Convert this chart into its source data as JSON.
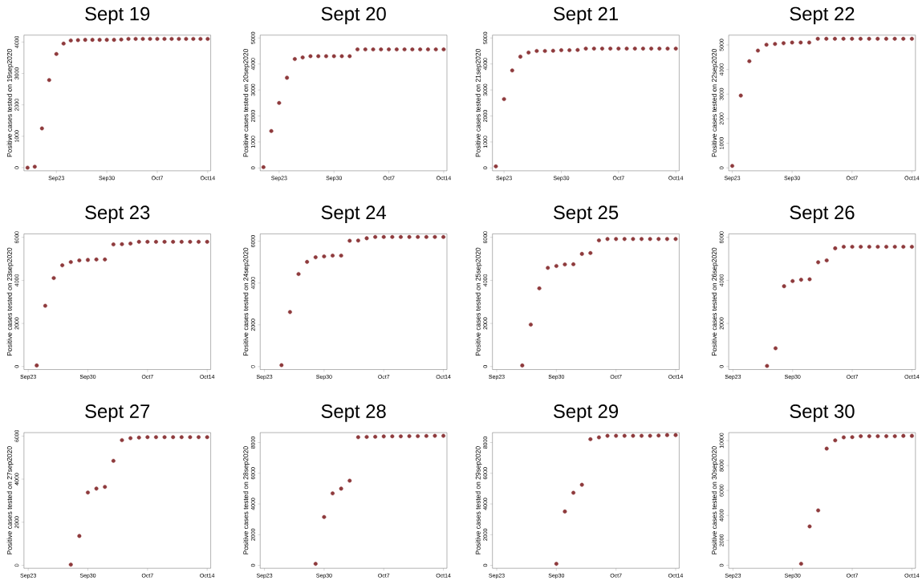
{
  "chart_data": [
    {
      "type": "scatter",
      "title": "Sept 19",
      "ylabel": "Positive cases tested on 19sep2020",
      "color": "#8e3a3c",
      "marker": "circle",
      "x": [
        "2020-09-19",
        "2020-09-20",
        "2020-09-21",
        "2020-09-22",
        "2020-09-23",
        "2020-09-24",
        "2020-09-25",
        "2020-09-26",
        "2020-09-27",
        "2020-09-28",
        "2020-09-29",
        "2020-09-30",
        "2020-10-01",
        "2020-10-02",
        "2020-10-03",
        "2020-10-04",
        "2020-10-05",
        "2020-10-06",
        "2020-10-07",
        "2020-10-08",
        "2020-10-09",
        "2020-10-10",
        "2020-10-11",
        "2020-10-12",
        "2020-10-13",
        "2020-10-14"
      ],
      "values": [
        0,
        30,
        1250,
        2790,
        3620,
        3950,
        4050,
        4060,
        4070,
        4070,
        4070,
        4070,
        4070,
        4080,
        4100,
        4100,
        4100,
        4100,
        4100,
        4100,
        4100,
        4100,
        4100,
        4100,
        4100,
        4100
      ],
      "xlim": [
        "2020-09-18T12:00",
        "2020-10-14T10:00"
      ],
      "ylim": [
        -100,
        4220
      ],
      "xticks": [
        {
          "value": "2020-09-23",
          "label": "Sep23"
        },
        {
          "value": "2020-09-30",
          "label": "Sep30"
        },
        {
          "value": "2020-10-07",
          "label": "Oct7"
        },
        {
          "value": "2020-10-14",
          "label": "Oct14"
        }
      ],
      "yticks": [
        0,
        1000,
        2000,
        3000,
        4000
      ]
    },
    {
      "type": "scatter",
      "title": "Sept 20",
      "ylabel": "Positive cases tested on 20sep2020",
      "color": "#8e3a3c",
      "marker": "circle",
      "x": [
        "2020-09-21",
        "2020-09-22",
        "2020-09-23",
        "2020-09-24",
        "2020-09-25",
        "2020-09-26",
        "2020-09-27",
        "2020-09-28",
        "2020-09-29",
        "2020-09-30",
        "2020-10-01",
        "2020-10-02",
        "2020-10-03",
        "2020-10-04",
        "2020-10-05",
        "2020-10-06",
        "2020-10-07",
        "2020-10-08",
        "2020-10-09",
        "2020-10-10",
        "2020-10-11",
        "2020-10-12",
        "2020-10-13",
        "2020-10-14"
      ],
      "values": [
        30,
        1420,
        2500,
        3470,
        4190,
        4250,
        4300,
        4300,
        4300,
        4300,
        4300,
        4300,
        4560,
        4560,
        4560,
        4560,
        4560,
        4560,
        4560,
        4560,
        4560,
        4560,
        4560,
        4560
      ],
      "xlim": [
        "2020-09-20T14:00",
        "2020-10-14T10:00"
      ],
      "ylim": [
        -110,
        5110
      ],
      "xticks": [
        {
          "value": "2020-09-23",
          "label": "Sep23"
        },
        {
          "value": "2020-09-30",
          "label": "Sep30"
        },
        {
          "value": "2020-10-07",
          "label": "Oct7"
        },
        {
          "value": "2020-10-14",
          "label": "Oct14"
        }
      ],
      "yticks": [
        0,
        1000,
        2000,
        3000,
        4000,
        5000
      ]
    },
    {
      "type": "scatter",
      "title": "Sept 21",
      "ylabel": "Positive cases tested on 21sep2020",
      "color": "#8e3a3c",
      "marker": "circle",
      "x": [
        "2020-09-22",
        "2020-09-23",
        "2020-09-24",
        "2020-09-25",
        "2020-09-26",
        "2020-09-27",
        "2020-09-28",
        "2020-09-29",
        "2020-09-30",
        "2020-10-01",
        "2020-10-02",
        "2020-10-03",
        "2020-10-04",
        "2020-10-05",
        "2020-10-06",
        "2020-10-07",
        "2020-10-08",
        "2020-10-09",
        "2020-10-10",
        "2020-10-11",
        "2020-10-12",
        "2020-10-13",
        "2020-10-14"
      ],
      "values": [
        60,
        2650,
        3750,
        4280,
        4440,
        4500,
        4500,
        4510,
        4530,
        4530,
        4540,
        4590,
        4590,
        4590,
        4590,
        4590,
        4590,
        4590,
        4590,
        4590,
        4590,
        4590,
        4590
      ],
      "xlim": [
        "2020-09-21T14:00",
        "2020-10-14T10:00"
      ],
      "ylim": [
        -110,
        5110
      ],
      "xticks": [
        {
          "value": "2020-09-23",
          "label": "Sep23"
        },
        {
          "value": "2020-09-30",
          "label": "Sep30"
        },
        {
          "value": "2020-10-07",
          "label": "Oct7"
        },
        {
          "value": "2020-10-14",
          "label": "Oct14"
        }
      ],
      "yticks": [
        0,
        1000,
        2000,
        3000,
        4000,
        5000
      ]
    },
    {
      "type": "scatter",
      "title": "Sept 22",
      "ylabel": "Positive cases tested on 22sep2020",
      "color": "#8e3a3c",
      "marker": "circle",
      "x": [
        "2020-09-23",
        "2020-09-24",
        "2020-09-25",
        "2020-09-26",
        "2020-09-27",
        "2020-09-28",
        "2020-09-29",
        "2020-09-30",
        "2020-10-01",
        "2020-10-02",
        "2020-10-03",
        "2020-10-04",
        "2020-10-05",
        "2020-10-06",
        "2020-10-07",
        "2020-10-08",
        "2020-10-09",
        "2020-10-10",
        "2020-10-11",
        "2020-10-12",
        "2020-10-13",
        "2020-10-14"
      ],
      "values": [
        80,
        2940,
        4340,
        4770,
        5010,
        5040,
        5070,
        5100,
        5100,
        5100,
        5250,
        5250,
        5250,
        5250,
        5250,
        5250,
        5250,
        5250,
        5250,
        5250,
        5250,
        5250
      ],
      "xlim": [
        "2020-09-22T14:00",
        "2020-10-14T10:00"
      ],
      "ylim": [
        -120,
        5400
      ],
      "xticks": [
        {
          "value": "2020-09-23",
          "label": "Sep23"
        },
        {
          "value": "2020-09-30",
          "label": "Sep30"
        },
        {
          "value": "2020-10-07",
          "label": "Oct7"
        },
        {
          "value": "2020-10-14",
          "label": "Oct14"
        }
      ],
      "yticks": [
        0,
        1000,
        2000,
        3000,
        4000,
        5000
      ]
    },
    {
      "type": "scatter",
      "title": "Sept 23",
      "ylabel": "Positive cases tested on 23sep2020",
      "color": "#8e3a3c",
      "marker": "circle",
      "x": [
        "2020-09-24",
        "2020-09-25",
        "2020-09-26",
        "2020-09-27",
        "2020-09-28",
        "2020-09-29",
        "2020-09-30",
        "2020-10-01",
        "2020-10-02",
        "2020-10-03",
        "2020-10-04",
        "2020-10-05",
        "2020-10-06",
        "2020-10-07",
        "2020-10-08",
        "2020-10-09",
        "2020-10-10",
        "2020-10-11",
        "2020-10-12",
        "2020-10-13",
        "2020-10-14"
      ],
      "values": [
        50,
        2820,
        4110,
        4700,
        4850,
        4930,
        4950,
        4970,
        4970,
        5670,
        5680,
        5710,
        5790,
        5790,
        5790,
        5790,
        5790,
        5790,
        5790,
        5790,
        5790
      ],
      "xlim": [
        "2020-09-22T12:00",
        "2020-10-14T10:00"
      ],
      "ylim": [
        -140,
        6160
      ],
      "xticks": [
        {
          "value": "2020-09-23",
          "label": "Sep23"
        },
        {
          "value": "2020-09-30",
          "label": "Sep30"
        },
        {
          "value": "2020-10-07",
          "label": "Oct7"
        },
        {
          "value": "2020-10-14",
          "label": "Oct14"
        }
      ],
      "yticks": [
        0,
        2000,
        4000,
        6000
      ]
    },
    {
      "type": "scatter",
      "title": "Sept 24",
      "ylabel": "Positive cases tested on 24sep2020",
      "color": "#8e3a3c",
      "marker": "circle",
      "x": [
        "2020-09-25",
        "2020-09-26",
        "2020-09-27",
        "2020-09-28",
        "2020-09-29",
        "2020-09-30",
        "2020-10-01",
        "2020-10-02",
        "2020-10-03",
        "2020-10-04",
        "2020-10-05",
        "2020-10-06",
        "2020-10-07",
        "2020-10-08",
        "2020-10-09",
        "2020-10-10",
        "2020-10-11",
        "2020-10-12",
        "2020-10-13",
        "2020-10-14"
      ],
      "values": [
        70,
        2610,
        4430,
        5010,
        5230,
        5270,
        5310,
        5310,
        6020,
        6030,
        6140,
        6200,
        6200,
        6200,
        6200,
        6200,
        6200,
        6200,
        6200,
        6200
      ],
      "xlim": [
        "2020-09-22T12:00",
        "2020-10-14T10:00"
      ],
      "ylim": [
        -140,
        6350
      ],
      "xticks": [
        {
          "value": "2020-09-23",
          "label": "Sep23"
        },
        {
          "value": "2020-09-30",
          "label": "Sep30"
        },
        {
          "value": "2020-10-07",
          "label": "Oct7"
        },
        {
          "value": "2020-10-14",
          "label": "Oct14"
        }
      ],
      "yticks": [
        0,
        2000,
        4000,
        6000
      ]
    },
    {
      "type": "scatter",
      "title": "Sept 25",
      "ylabel": "Positive cases tested on 25sep2020",
      "color": "#8e3a3c",
      "marker": "circle",
      "x": [
        "2020-09-26",
        "2020-09-27",
        "2020-09-28",
        "2020-09-29",
        "2020-09-30",
        "2020-10-01",
        "2020-10-02",
        "2020-10-03",
        "2020-10-04",
        "2020-10-05",
        "2020-10-06",
        "2020-10-07",
        "2020-10-08",
        "2020-10-09",
        "2020-10-10",
        "2020-10-11",
        "2020-10-12",
        "2020-10-13",
        "2020-10-14"
      ],
      "values": [
        50,
        1950,
        3630,
        4580,
        4670,
        4740,
        4750,
        5230,
        5270,
        5860,
        5920,
        5920,
        5920,
        5920,
        5920,
        5920,
        5920,
        5920,
        5920
      ],
      "xlim": [
        "2020-09-22T12:00",
        "2020-10-14T10:00"
      ],
      "ylim": [
        -140,
        6160
      ],
      "xticks": [
        {
          "value": "2020-09-23",
          "label": "Sep23"
        },
        {
          "value": "2020-09-30",
          "label": "Sep30"
        },
        {
          "value": "2020-10-07",
          "label": "Oct7"
        },
        {
          "value": "2020-10-14",
          "label": "Oct14"
        }
      ],
      "yticks": [
        0,
        2000,
        4000,
        6000
      ]
    },
    {
      "type": "scatter",
      "title": "Sept 26",
      "ylabel": "Positive cases tested on 26sep2020",
      "color": "#8e3a3c",
      "marker": "circle",
      "x": [
        "2020-09-27",
        "2020-09-28",
        "2020-09-29",
        "2020-09-30",
        "2020-10-01",
        "2020-10-02",
        "2020-10-03",
        "2020-10-04",
        "2020-10-05",
        "2020-10-06",
        "2020-10-07",
        "2020-10-08",
        "2020-10-09",
        "2020-10-10",
        "2020-10-11",
        "2020-10-12",
        "2020-10-13",
        "2020-10-14"
      ],
      "values": [
        30,
        850,
        3730,
        3970,
        4030,
        4050,
        4840,
        4930,
        5490,
        5560,
        5560,
        5560,
        5560,
        5560,
        5560,
        5560,
        5560,
        5560
      ],
      "xlim": [
        "2020-09-22T12:00",
        "2020-10-14T10:00"
      ],
      "ylim": [
        -140,
        6160
      ],
      "xticks": [
        {
          "value": "2020-09-23",
          "label": "Sep23"
        },
        {
          "value": "2020-09-30",
          "label": "Sep30"
        },
        {
          "value": "2020-10-07",
          "label": "Oct7"
        },
        {
          "value": "2020-10-14",
          "label": "Oct14"
        }
      ],
      "yticks": [
        0,
        2000,
        4000,
        6000
      ]
    },
    {
      "type": "scatter",
      "title": "Sept 27",
      "ylabel": "Positive cases tested on 27sep2020",
      "color": "#8e3a3c",
      "marker": "circle",
      "x": [
        "2020-09-28",
        "2020-09-29",
        "2020-09-30",
        "2020-10-01",
        "2020-10-02",
        "2020-10-03",
        "2020-10-04",
        "2020-10-05",
        "2020-10-06",
        "2020-10-07",
        "2020-10-08",
        "2020-10-09",
        "2020-10-10",
        "2020-10-11",
        "2020-10-12",
        "2020-10-13",
        "2020-10-14"
      ],
      "values": [
        30,
        1360,
        3380,
        3560,
        3640,
        4850,
        5810,
        5900,
        5930,
        5950,
        5950,
        5950,
        5950,
        5950,
        5950,
        5950,
        5950
      ],
      "xlim": [
        "2020-09-22T12:00",
        "2020-10-14T10:00"
      ],
      "ylim": [
        -140,
        6160
      ],
      "xticks": [
        {
          "value": "2020-09-23",
          "label": "Sep23"
        },
        {
          "value": "2020-09-30",
          "label": "Sep30"
        },
        {
          "value": "2020-10-07",
          "label": "Oct7"
        },
        {
          "value": "2020-10-14",
          "label": "Oct14"
        }
      ],
      "yticks": [
        0,
        2000,
        4000,
        6000
      ]
    },
    {
      "type": "scatter",
      "title": "Sept 28",
      "ylabel": "Positive cases tested on 28sep2020",
      "color": "#8e3a3c",
      "marker": "circle",
      "x": [
        "2020-09-29",
        "2020-09-30",
        "2020-10-01",
        "2020-10-02",
        "2020-10-03",
        "2020-10-04",
        "2020-10-05",
        "2020-10-06",
        "2020-10-07",
        "2020-10-08",
        "2020-10-09",
        "2020-10-10",
        "2020-10-11",
        "2020-10-12",
        "2020-10-13",
        "2020-10-14"
      ],
      "values": [
        100,
        3150,
        4690,
        5000,
        5520,
        8350,
        8370,
        8380,
        8400,
        8410,
        8410,
        8420,
        8420,
        8430,
        8440,
        8440
      ],
      "xlim": [
        "2020-09-22T12:00",
        "2020-10-14T10:00"
      ],
      "ylim": [
        -190,
        8650
      ],
      "xticks": [
        {
          "value": "2020-09-23",
          "label": "Sep23"
        },
        {
          "value": "2020-09-30",
          "label": "Sep30"
        },
        {
          "value": "2020-10-07",
          "label": "Oct7"
        },
        {
          "value": "2020-10-14",
          "label": "Oct14"
        }
      ],
      "yticks": [
        0,
        2000,
        4000,
        6000,
        8000
      ]
    },
    {
      "type": "scatter",
      "title": "Sept 29",
      "ylabel": "Positive cases tested on 29sep2020",
      "color": "#8e3a3c",
      "marker": "circle",
      "x": [
        "2020-09-30",
        "2020-10-01",
        "2020-10-02",
        "2020-10-03",
        "2020-10-04",
        "2020-10-05",
        "2020-10-06",
        "2020-10-07",
        "2020-10-08",
        "2020-10-09",
        "2020-10-10",
        "2020-10-11",
        "2020-10-12",
        "2020-10-13",
        "2020-10-14"
      ],
      "values": [
        100,
        3510,
        4730,
        5250,
        8220,
        8340,
        8440,
        8440,
        8440,
        8440,
        8440,
        8440,
        8460,
        8490,
        8490
      ],
      "xlim": [
        "2020-09-22T12:00",
        "2020-10-14T10:00"
      ],
      "ylim": [
        -190,
        8650
      ],
      "xticks": [
        {
          "value": "2020-09-23",
          "label": "Sep23"
        },
        {
          "value": "2020-09-30",
          "label": "Sep30"
        },
        {
          "value": "2020-10-07",
          "label": "Oct7"
        },
        {
          "value": "2020-10-14",
          "label": "Oct14"
        }
      ],
      "yticks": [
        0,
        2000,
        4000,
        6000,
        8000
      ]
    },
    {
      "type": "scatter",
      "title": "Sept 30",
      "ylabel": "Positive cases tested on 30sep2020",
      "color": "#8e3a3c",
      "marker": "circle",
      "x": [
        "2020-10-01",
        "2020-10-02",
        "2020-10-03",
        "2020-10-04",
        "2020-10-05",
        "2020-10-06",
        "2020-10-07",
        "2020-10-08",
        "2020-10-09",
        "2020-10-10",
        "2020-10-11",
        "2020-10-12",
        "2020-10-13",
        "2020-10-14"
      ],
      "values": [
        120,
        3120,
        4400,
        9360,
        10020,
        10260,
        10280,
        10350,
        10350,
        10350,
        10350,
        10350,
        10380,
        10380
      ],
      "xlim": [
        "2020-09-22T12:00",
        "2020-10-14T10:00"
      ],
      "ylim": [
        -240,
        10640
      ],
      "xticks": [
        {
          "value": "2020-09-23",
          "label": "Sep23"
        },
        {
          "value": "2020-09-30",
          "label": "Sep30"
        },
        {
          "value": "2020-10-07",
          "label": "Oct7"
        },
        {
          "value": "2020-10-14",
          "label": "Oct14"
        }
      ],
      "yticks": [
        0,
        2000,
        4000,
        6000,
        8000,
        10000
      ]
    }
  ]
}
